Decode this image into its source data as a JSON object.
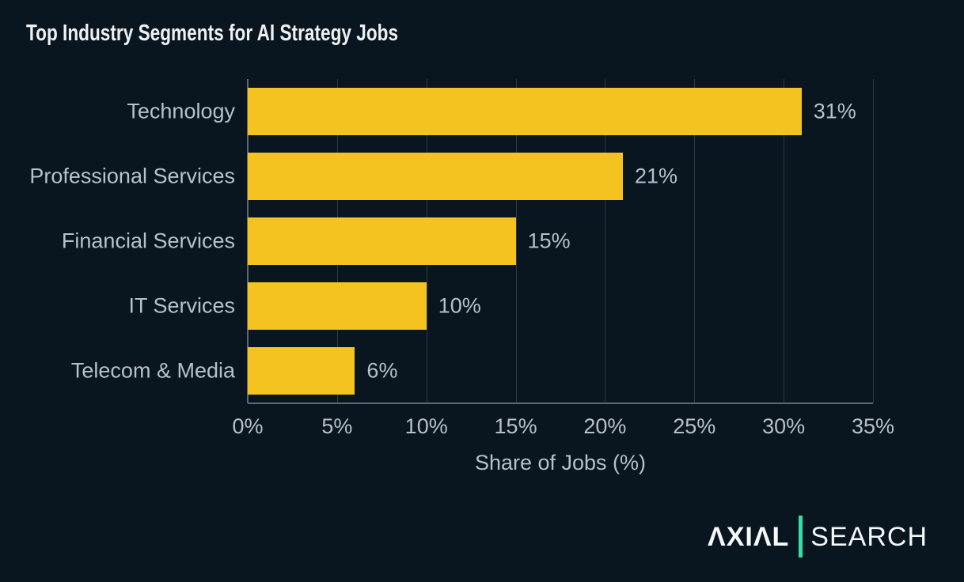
{
  "page": {
    "background_color": "#09151f"
  },
  "header": {
    "title": "Top Industry Segments for AI Strategy Jobs"
  },
  "chart_data": {
    "type": "bar",
    "orientation": "horizontal",
    "title": "Top Industry Segments for AI Strategy Jobs",
    "categories": [
      "Technology",
      "Professional Services",
      "Financial Services",
      "IT Services",
      "Telecom & Media"
    ],
    "values": [
      31,
      21,
      15,
      10,
      6
    ],
    "value_labels": [
      "31%",
      "21%",
      "15%",
      "10%",
      "6%"
    ],
    "xlabel": "Share of Jobs (%)",
    "ylabel": "",
    "xlim": [
      0,
      35
    ],
    "xticks": [
      0,
      5,
      10,
      15,
      20,
      25,
      30,
      35
    ],
    "xtick_labels": [
      "0%",
      "5%",
      "10%",
      "15%",
      "20%",
      "25%",
      "30%",
      "35%"
    ],
    "grid": "vertical",
    "legend": null,
    "bar_color": "#f5c320",
    "text_color": "#b8c1c8",
    "gridline_color": "#2c3a44",
    "axis_color": "#5d6870"
  },
  "footer": {
    "brand_primary": "AXIAL",
    "brand_primary_display": "ΛXIΛL",
    "brand_secondary": "SEARCH",
    "divider_color": "#36dfa1"
  }
}
